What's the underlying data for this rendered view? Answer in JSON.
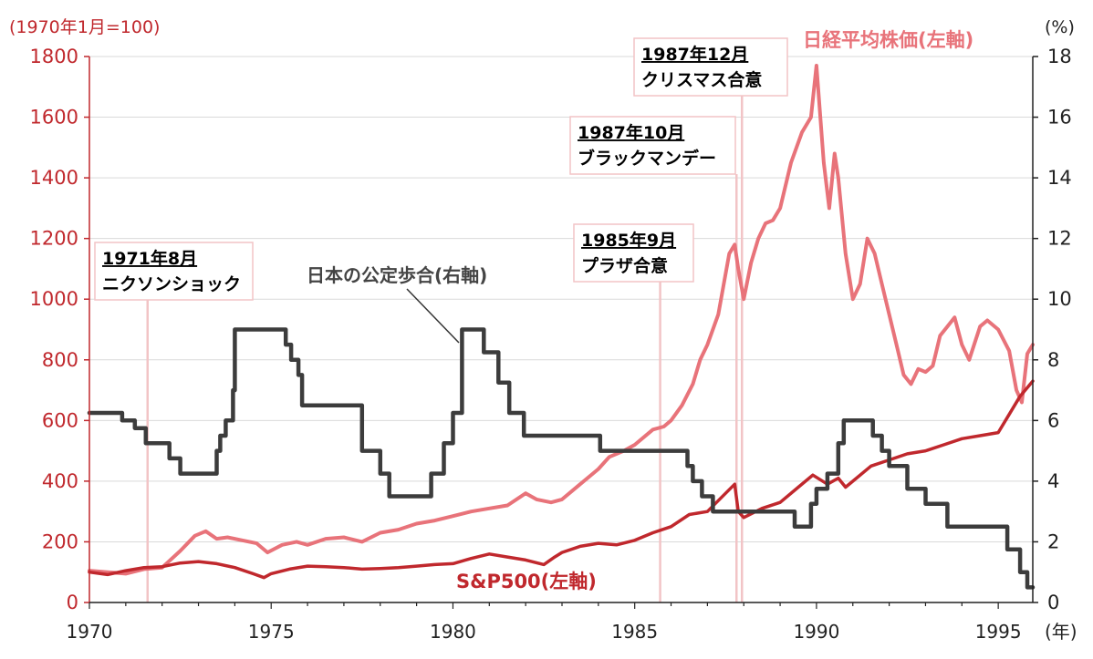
{
  "chart_data": {
    "type": "line",
    "left_axis_unit": "(1970年1月=100)",
    "right_axis_unit": "(%)",
    "x_unit": "(年)",
    "xlim": [
      1970,
      1995.95
    ],
    "ylim_left": [
      0,
      1800
    ],
    "ylim_right": [
      0,
      18
    ],
    "x_ticks": [
      "1970",
      "1975",
      "1980",
      "1985",
      "1990",
      "1995"
    ],
    "y_ticks_left": [
      "0",
      "200",
      "400",
      "600",
      "800",
      "1000",
      "1200",
      "1400",
      "1600",
      "1800"
    ],
    "y_ticks_right": [
      "0",
      "2",
      "4",
      "6",
      "8",
      "10",
      "12",
      "14",
      "16",
      "18"
    ],
    "grid": true,
    "colors": {
      "nikkei": "#e8737a",
      "sp500": "#c0282d",
      "rate": "#3c3c3c",
      "event_line": "#f2c4c6",
      "event_border": "#f2c4c6",
      "grid": "#d9d9d9",
      "left_axis": "#c0282d"
    },
    "series": [
      {
        "name": "日経平均株価(左軸)",
        "axis": "left",
        "x": [
          1970.0,
          1970.5,
          1971.0,
          1971.5,
          1972.0,
          1972.5,
          1972.9,
          1973.2,
          1973.5,
          1973.8,
          1974.2,
          1974.6,
          1974.9,
          1975.3,
          1975.7,
          1976.0,
          1976.5,
          1977.0,
          1977.5,
          1978.0,
          1978.5,
          1979.0,
          1979.5,
          1980.0,
          1980.5,
          1981.0,
          1981.5,
          1982.0,
          1982.3,
          1982.7,
          1983.0,
          1983.5,
          1984.0,
          1984.3,
          1984.7,
          1985.0,
          1985.5,
          1985.8,
          1986.0,
          1986.3,
          1986.6,
          1986.8,
          1987.0,
          1987.3,
          1987.6,
          1987.75,
          1987.85,
          1988.0,
          1988.2,
          1988.4,
          1988.6,
          1988.8,
          1989.0,
          1989.3,
          1989.6,
          1989.85,
          1990.0,
          1990.2,
          1990.35,
          1990.5,
          1990.6,
          1990.8,
          1991.0,
          1991.2,
          1991.4,
          1991.6,
          1991.8,
          1992.0,
          1992.2,
          1992.4,
          1992.6,
          1992.8,
          1993.0,
          1993.2,
          1993.4,
          1993.6,
          1993.8,
          1994.0,
          1994.2,
          1994.5,
          1994.7,
          1995.0,
          1995.3,
          1995.5,
          1995.65,
          1995.8,
          1995.95
        ],
        "values": [
          105,
          100,
          95,
          110,
          115,
          170,
          220,
          235,
          210,
          215,
          205,
          195,
          165,
          190,
          200,
          190,
          210,
          215,
          200,
          230,
          240,
          260,
          270,
          285,
          300,
          310,
          320,
          360,
          340,
          330,
          340,
          390,
          440,
          480,
          500,
          520,
          570,
          580,
          600,
          650,
          720,
          800,
          850,
          950,
          1150,
          1180,
          1100,
          1000,
          1120,
          1200,
          1250,
          1260,
          1300,
          1450,
          1550,
          1600,
          1770,
          1450,
          1300,
          1480,
          1400,
          1150,
          1000,
          1050,
          1200,
          1150,
          1050,
          950,
          850,
          750,
          720,
          770,
          760,
          780,
          880,
          910,
          940,
          850,
          800,
          910,
          930,
          900,
          830,
          700,
          660,
          820,
          850
        ]
      },
      {
        "name": "S&P500(左軸)",
        "axis": "left",
        "x": [
          1970.0,
          1970.5,
          1971.0,
          1971.5,
          1972.0,
          1972.5,
          1973.0,
          1973.5,
          1974.0,
          1974.5,
          1974.8,
          1975.0,
          1975.5,
          1976.0,
          1976.5,
          1977.0,
          1977.5,
          1978.0,
          1978.5,
          1979.0,
          1979.5,
          1980.0,
          1980.5,
          1981.0,
          1981.5,
          1982.0,
          1982.5,
          1982.8,
          1983.0,
          1983.5,
          1984.0,
          1984.5,
          1985.0,
          1985.5,
          1986.0,
          1986.5,
          1987.0,
          1987.5,
          1987.75,
          1987.85,
          1988.0,
          1988.5,
          1989.0,
          1989.5,
          1989.9,
          1990.3,
          1990.6,
          1990.8,
          1991.0,
          1991.5,
          1992.0,
          1992.5,
          1993.0,
          1993.5,
          1994.0,
          1994.5,
          1995.0,
          1995.3,
          1995.6,
          1995.95
        ],
        "values": [
          100,
          92,
          105,
          115,
          118,
          130,
          135,
          128,
          115,
          95,
          82,
          95,
          110,
          120,
          118,
          115,
          110,
          112,
          115,
          120,
          125,
          128,
          145,
          160,
          150,
          140,
          125,
          150,
          165,
          185,
          195,
          190,
          205,
          230,
          250,
          290,
          300,
          360,
          390,
          300,
          280,
          310,
          330,
          380,
          420,
          390,
          410,
          380,
          400,
          450,
          470,
          490,
          500,
          520,
          540,
          550,
          560,
          620,
          680,
          730
        ]
      },
      {
        "name": "日本の公定歩合(右軸)",
        "axis": "right",
        "x": [
          1970.0,
          1970.75,
          1970.9,
          1971.05,
          1971.25,
          1971.55,
          1971.75,
          1972.2,
          1972.5,
          1973.35,
          1973.5,
          1973.6,
          1973.75,
          1973.95,
          1974.0,
          1975.25,
          1975.4,
          1975.55,
          1975.75,
          1975.85,
          1977.25,
          1977.5,
          1977.75,
          1978.0,
          1978.25,
          1979.25,
          1979.4,
          1979.6,
          1979.75,
          1980.0,
          1980.25,
          1980.7,
          1980.85,
          1981.25,
          1981.55,
          1981.95,
          1982.0,
          1983.95,
          1984.05,
          1986.25,
          1986.45,
          1986.6,
          1986.85,
          1987.15,
          1989.4,
          1989.6,
          1989.85,
          1990.0,
          1990.3,
          1990.6,
          1990.75,
          1991.5,
          1991.55,
          1991.8,
          1992.0,
          1992.5,
          1993.0,
          1993.6,
          1995.25,
          1995.5,
          1995.6,
          1995.8,
          1995.95
        ],
        "values": [
          6.25,
          6.25,
          6.0,
          6.0,
          5.75,
          5.25,
          5.25,
          4.75,
          4.25,
          4.25,
          5.0,
          5.5,
          6.0,
          7.0,
          9.0,
          9.0,
          8.5,
          8.0,
          7.5,
          6.5,
          6.5,
          5.0,
          5.0,
          4.25,
          3.5,
          3.5,
          4.25,
          4.25,
          5.25,
          6.25,
          9.0,
          9.0,
          8.25,
          7.25,
          6.25,
          5.5,
          5.5,
          5.5,
          5.0,
          5.0,
          4.5,
          4.0,
          3.5,
          3.0,
          2.5,
          2.5,
          3.25,
          3.75,
          4.25,
          5.25,
          6.0,
          6.0,
          5.5,
          5.0,
          4.5,
          3.75,
          3.25,
          2.5,
          1.75,
          1.75,
          1.0,
          0.5,
          0.5
        ]
      }
    ],
    "events": [
      {
        "x": 1971.6,
        "date": "1971年8月",
        "label": "ニクソンショック"
      },
      {
        "x": 1985.7,
        "date": "1985年9月",
        "label": "プラザ合意"
      },
      {
        "x": 1987.8,
        "date": "1987年10月",
        "label": "ブラックマンデー"
      },
      {
        "x": 1987.95,
        "date": "1987年12月",
        "label": "クリスマス合意"
      }
    ]
  }
}
